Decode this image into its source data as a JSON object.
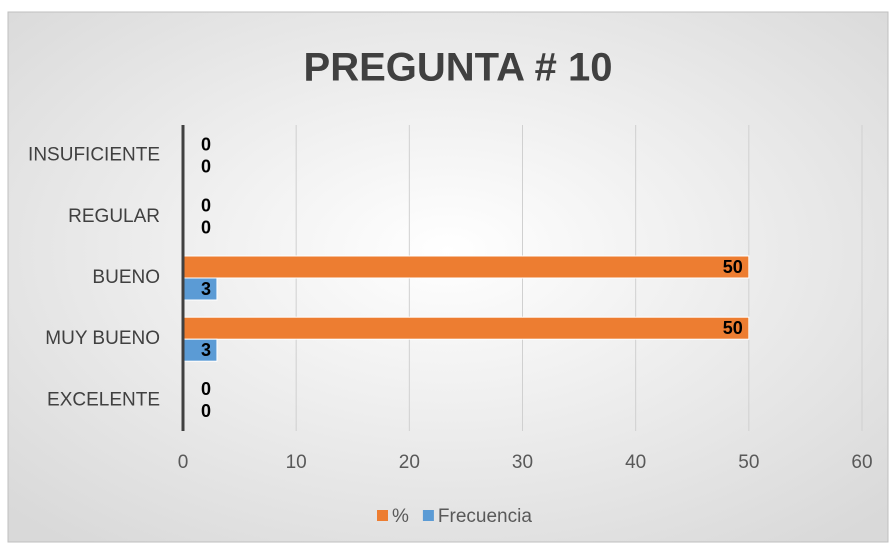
{
  "chart_data": {
    "type": "bar",
    "orientation": "horizontal",
    "title": "PREGUNTA # 10",
    "categories": [
      "EXCELENTE",
      "MUY BUENO",
      "BUENO",
      "REGULAR",
      "INSUFICIENTE"
    ],
    "series": [
      {
        "name": "%",
        "color": "#ed7d31",
        "values": [
          0,
          50,
          50,
          0,
          0
        ]
      },
      {
        "name": "Frecuencia",
        "color": "#5b9bd5",
        "values": [
          0,
          3,
          3,
          0,
          0
        ]
      }
    ],
    "xlim": [
      0,
      60
    ],
    "xticks": [
      0,
      10,
      20,
      30,
      40,
      50,
      60
    ],
    "grid": true,
    "legend": "bottom"
  }
}
